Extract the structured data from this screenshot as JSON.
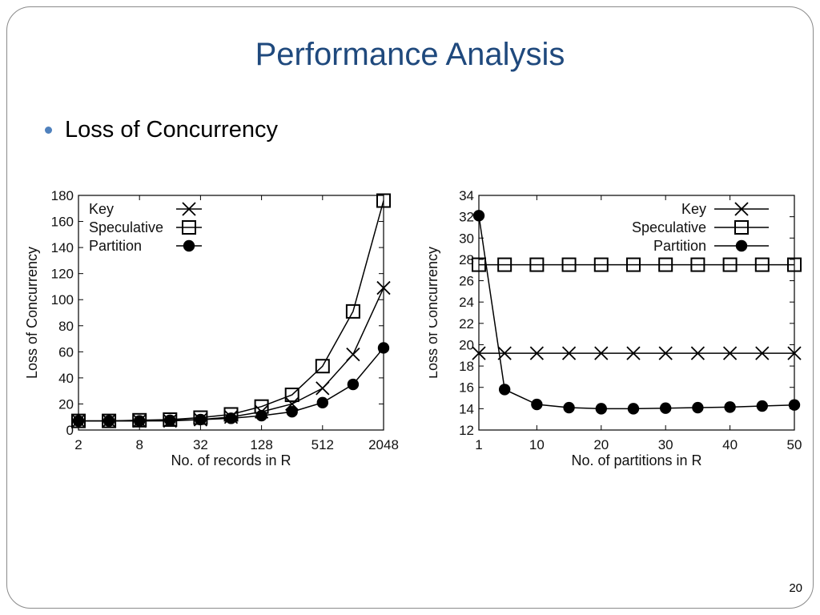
{
  "slide": {
    "title": "Performance Analysis",
    "bullet": "Loss of Concurrency",
    "page_number": "20"
  },
  "chart_data": [
    {
      "type": "line",
      "xlabel": "No. of records in R",
      "ylabel": "Loss of Concurrency",
      "x_scale": "log2",
      "x": [
        2,
        4,
        8,
        16,
        32,
        64,
        128,
        256,
        512,
        1024,
        2048
      ],
      "xticks": [
        2,
        8,
        32,
        128,
        512,
        2048
      ],
      "ylim": [
        0,
        180
      ],
      "yticks": [
        0,
        20,
        40,
        60,
        80,
        100,
        120,
        140,
        160,
        180
      ],
      "legend_position": "top-left",
      "series": [
        {
          "name": "Key",
          "marker": "x",
          "values": [
            7,
            7,
            7,
            7,
            8,
            10,
            14,
            20,
            32,
            58,
            109
          ]
        },
        {
          "name": "Speculative",
          "marker": "square",
          "values": [
            7,
            7,
            7.5,
            8,
            9.5,
            12,
            18,
            27,
            49,
            91,
            176
          ]
        },
        {
          "name": "Partition",
          "marker": "filled-circle",
          "values": [
            7,
            7,
            7,
            7.5,
            8,
            9,
            11,
            14,
            21,
            35,
            63
          ]
        }
      ]
    },
    {
      "type": "line",
      "xlabel": "No. of partitions in R",
      "ylabel": "Loss of Concurrency",
      "x": [
        1,
        5,
        10,
        15,
        20,
        25,
        30,
        35,
        40,
        45,
        50
      ],
      "xticks": [
        1,
        10,
        20,
        30,
        40,
        50
      ],
      "ylim": [
        12,
        34
      ],
      "yticks": [
        12,
        14,
        16,
        18,
        20,
        22,
        24,
        26,
        28,
        30,
        32,
        34
      ],
      "legend_position": "top-right",
      "series": [
        {
          "name": "Key",
          "marker": "x",
          "values": [
            19.2,
            19.2,
            19.2,
            19.2,
            19.2,
            19.2,
            19.2,
            19.2,
            19.2,
            19.2,
            19.2
          ]
        },
        {
          "name": "Speculative",
          "marker": "square",
          "values": [
            27.5,
            27.5,
            27.5,
            27.5,
            27.5,
            27.5,
            27.5,
            27.5,
            27.5,
            27.5,
            27.5
          ]
        },
        {
          "name": "Partition",
          "marker": "filled-circle",
          "values": [
            32.1,
            15.8,
            14.4,
            14.1,
            14.0,
            14.0,
            14.05,
            14.1,
            14.15,
            14.25,
            14.35
          ]
        }
      ]
    }
  ]
}
